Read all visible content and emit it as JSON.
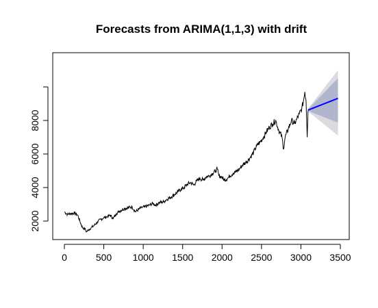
{
  "chart_data": {
    "type": "line",
    "title": "Forecasts from ARIMA(1,1,3) with drift",
    "xlabel": "",
    "ylabel": "",
    "xlim": [
      0,
      3500
    ],
    "ylim": [
      1100,
      11000
    ],
    "x_ticks": [
      0,
      500,
      1000,
      1500,
      2000,
      2500,
      3000,
      3500
    ],
    "x_tick_labels": [
      "0",
      "500",
      "1000",
      "1500",
      "2000",
      "2500",
      "3000",
      "3500"
    ],
    "y_ticks": [
      2000,
      4000,
      6000,
      8000,
      10000
    ],
    "y_tick_labels": [
      "2000",
      "4000",
      "6000",
      "8000",
      ""
    ],
    "grid": false,
    "colors": {
      "history": "#000000",
      "forecast": "#0000ff",
      "band80": "#b1b5ce",
      "band95": "#dbdbdf"
    },
    "series": [
      {
        "kind": "history",
        "x": [
          0,
          40,
          80,
          130,
          170,
          200,
          230,
          260,
          280,
          300,
          340,
          380,
          420,
          460,
          500,
          540,
          580,
          620,
          660,
          700,
          760,
          820,
          860,
          900,
          940,
          980,
          1020,
          1080,
          1120,
          1160,
          1200,
          1260,
          1300,
          1360,
          1400,
          1440,
          1480,
          1520,
          1560,
          1600,
          1640,
          1680,
          1720,
          1760,
          1800,
          1840,
          1880,
          1920,
          1940,
          1960,
          1990,
          2030,
          2070,
          2100,
          2140,
          2180,
          2220,
          2260,
          2300,
          2350,
          2400,
          2440,
          2480,
          2520,
          2560,
          2600,
          2640,
          2680,
          2720,
          2760,
          2780,
          2800,
          2840,
          2880,
          2920,
          2950,
          2980,
          3010,
          3030,
          3050,
          3065,
          3080,
          3090
        ],
        "y": [
          2550,
          2400,
          2450,
          2480,
          2350,
          1950,
          1600,
          1550,
          1350,
          1450,
          1600,
          1750,
          1950,
          2100,
          2200,
          2250,
          2350,
          2150,
          2450,
          2600,
          2750,
          2800,
          2850,
          2550,
          2700,
          2800,
          2850,
          2950,
          3050,
          2950,
          3100,
          3150,
          3300,
          3450,
          3600,
          3750,
          3900,
          4000,
          4200,
          4300,
          4150,
          4400,
          4550,
          4450,
          4650,
          4700,
          4850,
          5000,
          5100,
          4700,
          4650,
          4450,
          4550,
          4700,
          4850,
          4950,
          5100,
          5350,
          5500,
          5750,
          6100,
          6500,
          6700,
          6950,
          7300,
          7600,
          7800,
          8000,
          7400,
          7000,
          6300,
          7000,
          7500,
          8000,
          7800,
          8100,
          8400,
          8700,
          9100,
          9700,
          9200,
          7000,
          8600
        ]
      }
    ],
    "forecast": {
      "x": [
        3090,
        3470
      ],
      "mean": [
        8620,
        9320
      ],
      "lo80": [
        8570,
        7870
      ],
      "hi80": [
        8670,
        10520
      ],
      "lo95": [
        8540,
        7100
      ],
      "hi95": [
        8700,
        11000
      ]
    }
  }
}
